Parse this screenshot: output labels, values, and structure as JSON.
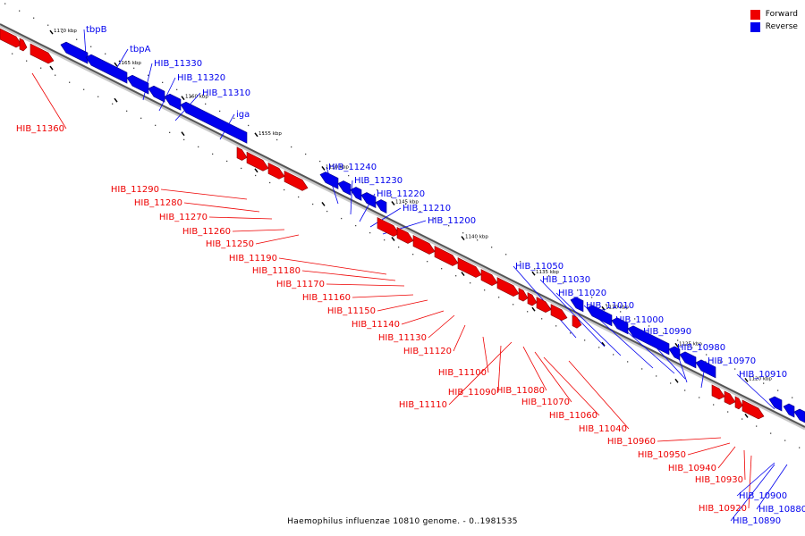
{
  "legend": {
    "forward_label": "Forward",
    "reverse_label": "Reverse",
    "forward_color": "#ee0000",
    "reverse_color": "#0000ee"
  },
  "caption": "Haemophilus influenzae 10810 genome. - 0..1981535",
  "ticks": [
    "1170 kbp",
    "1165 kbp",
    "1160 kbp",
    "1155 kbp",
    "1150 kbp",
    "1145 kbp",
    "1140 kbp",
    "1135 kbp",
    "1130 kbp",
    "1125 kbp",
    "1120 kbp"
  ],
  "genes": [
    {
      "label": "tbpB",
      "strand": "reverse"
    },
    {
      "label": "tbpA",
      "strand": "reverse"
    },
    {
      "label": "HIB_11330",
      "strand": "reverse"
    },
    {
      "label": "HIB_11320",
      "strand": "reverse"
    },
    {
      "label": "HIB_11310",
      "strand": "reverse"
    },
    {
      "label": "iga",
      "strand": "reverse"
    },
    {
      "label": "HIB_11360",
      "strand": "forward"
    },
    {
      "label": "HIB_11240",
      "strand": "reverse"
    },
    {
      "label": "HIB_11230",
      "strand": "reverse"
    },
    {
      "label": "HIB_11220",
      "strand": "reverse"
    },
    {
      "label": "HIB_11210",
      "strand": "reverse"
    },
    {
      "label": "HIB_11200",
      "strand": "reverse"
    },
    {
      "label": "HIB_11290",
      "strand": "forward"
    },
    {
      "label": "HIB_11280",
      "strand": "forward"
    },
    {
      "label": "HIB_11270",
      "strand": "forward"
    },
    {
      "label": "HIB_11260",
      "strand": "forward"
    },
    {
      "label": "HIB_11250",
      "strand": "forward"
    },
    {
      "label": "HIB_11190",
      "strand": "forward"
    },
    {
      "label": "HIB_11180",
      "strand": "forward"
    },
    {
      "label": "HIB_11170",
      "strand": "forward"
    },
    {
      "label": "HIB_11160",
      "strand": "forward"
    },
    {
      "label": "HIB_11150",
      "strand": "forward"
    },
    {
      "label": "HIB_11140",
      "strand": "forward"
    },
    {
      "label": "HIB_11130",
      "strand": "forward"
    },
    {
      "label": "HIB_11120",
      "strand": "forward"
    },
    {
      "label": "HIB_11100",
      "strand": "forward"
    },
    {
      "label": "HIB_11110",
      "strand": "forward"
    },
    {
      "label": "HIB_11090",
      "strand": "forward"
    },
    {
      "label": "HIB_11080",
      "strand": "forward"
    },
    {
      "label": "HIB_11070",
      "strand": "forward"
    },
    {
      "label": "HIB_11060",
      "strand": "forward"
    },
    {
      "label": "HIB_11040",
      "strand": "forward"
    },
    {
      "label": "HIB_11050",
      "strand": "reverse"
    },
    {
      "label": "HIB_11030",
      "strand": "reverse"
    },
    {
      "label": "HIB_11020",
      "strand": "reverse"
    },
    {
      "label": "HIB_11010",
      "strand": "reverse"
    },
    {
      "label": "HIB_11000",
      "strand": "reverse"
    },
    {
      "label": "HIB_10990",
      "strand": "reverse"
    },
    {
      "label": "HIB_10980",
      "strand": "reverse"
    },
    {
      "label": "HIB_10970",
      "strand": "reverse"
    },
    {
      "label": "HIB_10910",
      "strand": "reverse"
    },
    {
      "label": "HIB_10960",
      "strand": "forward"
    },
    {
      "label": "HIB_10950",
      "strand": "forward"
    },
    {
      "label": "HIB_10940",
      "strand": "forward"
    },
    {
      "label": "HIB_10930",
      "strand": "forward"
    },
    {
      "label": "HIB_10920",
      "strand": "forward"
    },
    {
      "label": "HIB_10900",
      "strand": "reverse"
    },
    {
      "label": "HIB_10880",
      "strand": "reverse"
    },
    {
      "label": "HIB_10890",
      "strand": "reverse"
    }
  ]
}
